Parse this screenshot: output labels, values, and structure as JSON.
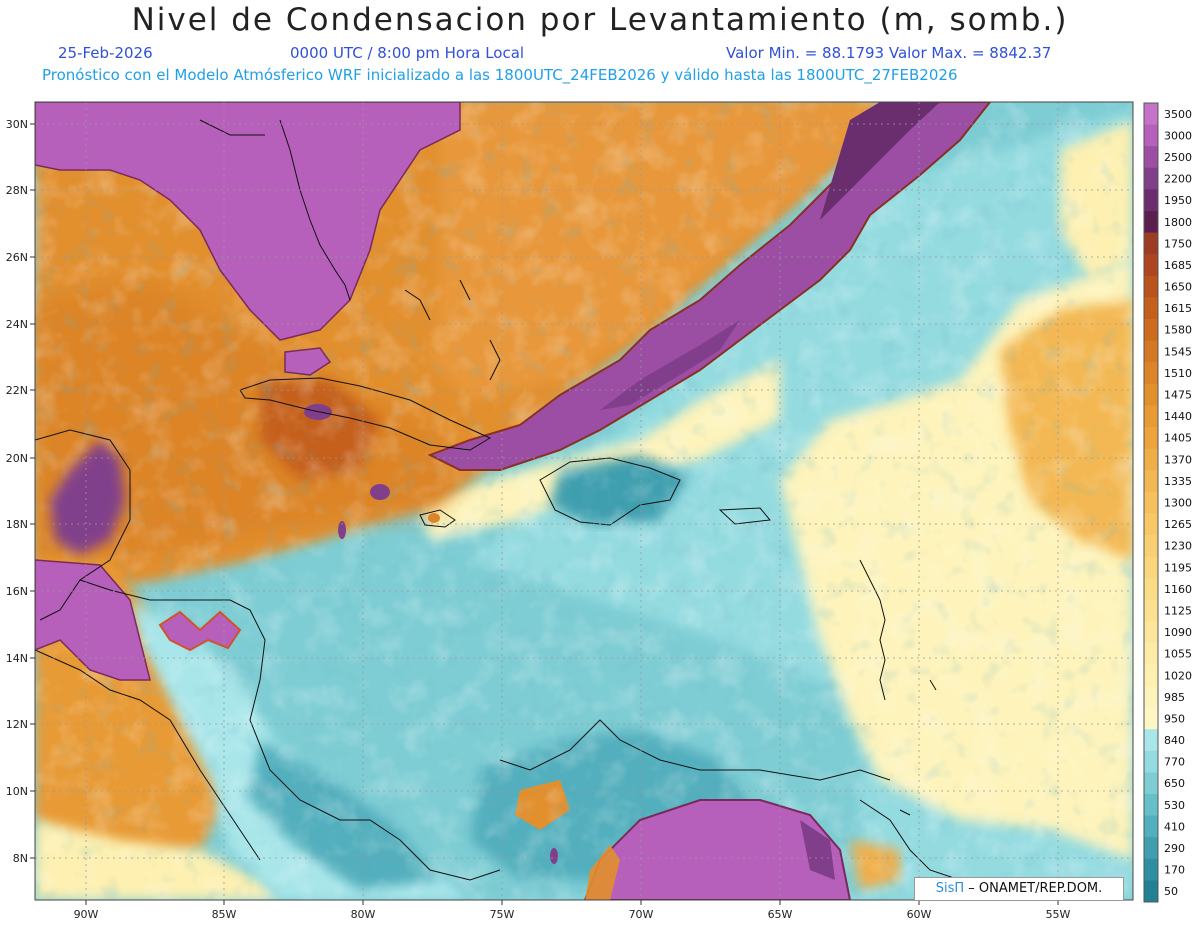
{
  "title": "Nivel de Condensacion por Levantamiento (m, somb.)",
  "date": "25-Feb-2026",
  "time": "0000 UTC / 8:00 pm Hora Local",
  "minmax": "Valor Min. = 88.1793   Valor Max. = 8842.37",
  "forecast": "Pronóstico con el Modelo Atmósferico WRF inicializado a las 1800UTC_24FEB2026 y válido hasta las  1800UTC_27FEB2026",
  "credit": {
    "brand": "SisΠ",
    "rest": " – ONAMET/REP.DOM."
  },
  "map_data": {
    "lon_range": [
      -92,
      -54
    ],
    "lat_range": [
      6.6,
      30.6
    ],
    "lat_ticks": [
      "30N",
      "28N",
      "26N",
      "24N",
      "22N",
      "20N",
      "18N",
      "16N",
      "14N",
      "12N",
      "10N",
      "8N"
    ],
    "lon_ticks": [
      "90W",
      "85W",
      "80W",
      "75W",
      "70W",
      "65W",
      "60W",
      "55W"
    ],
    "colorbar": {
      "labels": [
        "3500",
        "3000",
        "2500",
        "2200",
        "1950",
        "1800",
        "1750",
        "1685",
        "1650",
        "1615",
        "1580",
        "1545",
        "1510",
        "1475",
        "1440",
        "1405",
        "1370",
        "1335",
        "1300",
        "1265",
        "1230",
        "1195",
        "1160",
        "1125",
        "1090",
        "1055",
        "1020",
        "985",
        "950",
        "840",
        "770",
        "650",
        "530",
        "410",
        "290",
        "170",
        "50"
      ],
      "colors": [
        "#c572c9",
        "#b660bb",
        "#9c4ea4",
        "#813f8b",
        "#6a2e6e",
        "#5b1f4f",
        "#9c3c24",
        "#ac4520",
        "#b9521c",
        "#c5601c",
        "#cd6b1f",
        "#d57823",
        "#dc8428",
        "#e28f2e",
        "#e89a36",
        "#eda43e",
        "#f0ae48",
        "#f3b853",
        "#f6c05c",
        "#f8c866",
        "#f9cf71",
        "#fad67c",
        "#fbdc86",
        "#fce191",
        "#fde69c",
        "#fdeba7",
        "#fdf0b1",
        "#fdf3bb",
        "#fdf6c5",
        "#a9e6ea",
        "#94dbe0",
        "#7ecdd4",
        "#67bfc9",
        "#52afbd",
        "#3f9faf",
        "#2f8fa2",
        "#237f94"
      ]
    }
  }
}
